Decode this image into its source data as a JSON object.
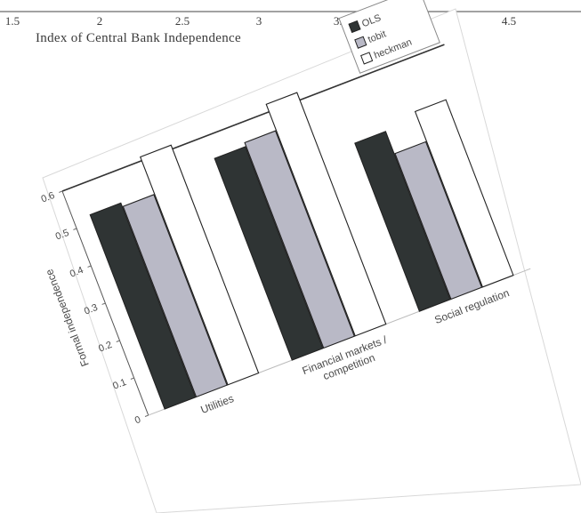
{
  "top_chart": {
    "xlabel": "Index of Central Bank Independence",
    "x_ticks": [
      "1.5",
      "2",
      "2.5",
      "3",
      "3.5",
      "4.5"
    ]
  },
  "chart_data": {
    "type": "bar",
    "title": "",
    "xlabel": "",
    "ylabel": "Formal independence",
    "ylim": [
      0,
      0.6
    ],
    "y_ticks": [
      "0",
      "0.1",
      "0.2",
      "0.3",
      "0.4",
      "0.5",
      "0.6"
    ],
    "categories": [
      "Utilities",
      "Financial markets / competition",
      "Social regulation"
    ],
    "category_lines": [
      [
        "Utilities"
      ],
      [
        "Financial markets /",
        "competition"
      ],
      [
        "Social regulation"
      ]
    ],
    "series": [
      {
        "name": "OLS",
        "values": [
          0.52,
          0.54,
          0.45
        ],
        "color": "#2f3434"
      },
      {
        "name": "tobit",
        "values": [
          0.51,
          0.55,
          0.39
        ],
        "color": "#b9b9c6"
      },
      {
        "name": "heckman",
        "values": [
          0.61,
          0.62,
          0.47
        ],
        "color": "#ffffff"
      }
    ],
    "legend_position": "top-right",
    "grid": false
  }
}
